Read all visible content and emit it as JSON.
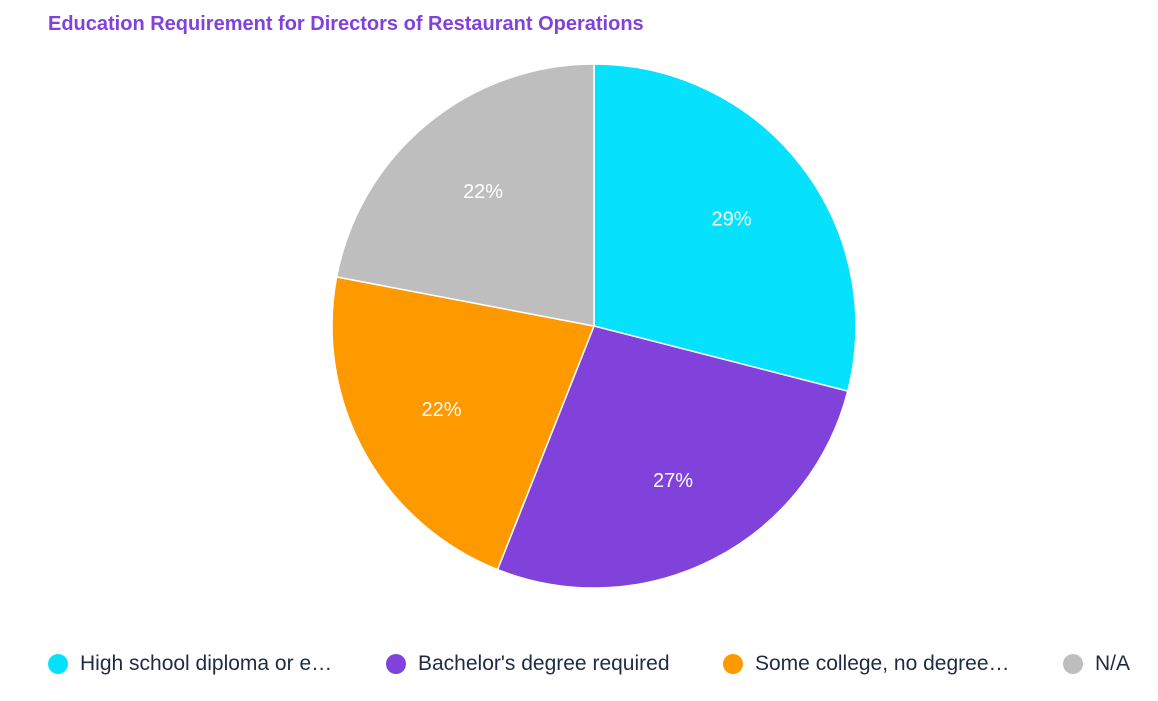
{
  "chart_data": {
    "type": "pie",
    "title": "Education Requirement for Directors of Restaurant Operations",
    "slices": [
      {
        "label": "High school diploma or e…",
        "value": 29,
        "display": "29%",
        "color": "#06e2fd"
      },
      {
        "label": "Bachelor's degree required",
        "value": 27,
        "display": "27%",
        "color": "#8142dc"
      },
      {
        "label": "Some college, no degree…",
        "value": 22,
        "display": "22%",
        "color": "#fe9900"
      },
      {
        "label": "N/A",
        "value": 22,
        "display": "22%",
        "color": "#bebebe"
      }
    ],
    "legend_position": "bottom"
  }
}
